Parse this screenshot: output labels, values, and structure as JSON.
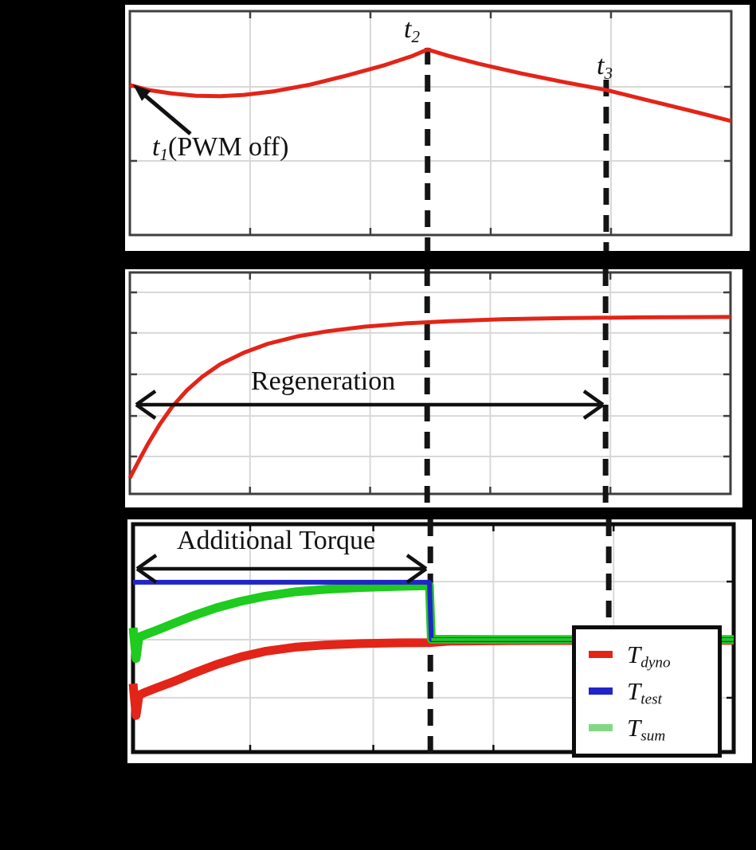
{
  "figure": {
    "background": "#000000",
    "panel_background": "#ffffff",
    "description": "Three stacked oscilloscope-style plots: speed trace with t1/t2/t3 markers, regeneration quantity trace, and torque traces with legend"
  },
  "colors": {
    "red": "#e32418",
    "green": "#1ecb1e",
    "green_light": "#84d884",
    "blue": "#2125c8",
    "frame": "#3f3f3f",
    "frame_dark": "#0d0d0d",
    "grid": "#d8d8d8",
    "dash": "#141414",
    "text": "#111111"
  },
  "chart_data": [
    {
      "id": "top-plot",
      "type": "line",
      "title": "",
      "xlabel": "",
      "ylabel": "",
      "axes_unlabeled": true,
      "grid": true,
      "x_gridlines": [
        0.2,
        0.4,
        0.6,
        0.8
      ],
      "y_gridlines": [
        0.331,
        0.662
      ],
      "event_x": [
        0.495,
        0.792
      ],
      "annotations": {
        "t1": {
          "base": "t",
          "sub": "1",
          "rest": "(PWM off)",
          "x": 0.0
        },
        "t2": {
          "base": "t",
          "sub": "2",
          "x": 0.495
        },
        "t3": {
          "base": "t",
          "sub": "3",
          "x": 0.792
        }
      },
      "series": [
        {
          "name": "speed-curve",
          "color_key": "red",
          "width": 5,
          "points": [
            [
              0,
              0.67
            ],
            [
              0.03,
              0.648
            ],
            [
              0.07,
              0.632
            ],
            [
              0.11,
              0.622
            ],
            [
              0.15,
              0.62
            ],
            [
              0.19,
              0.626
            ],
            [
              0.24,
              0.642
            ],
            [
              0.3,
              0.672
            ],
            [
              0.36,
              0.712
            ],
            [
              0.42,
              0.756
            ],
            [
              0.47,
              0.8
            ],
            [
              0.495,
              0.829
            ],
            [
              0.53,
              0.8
            ],
            [
              0.58,
              0.765
            ],
            [
              0.65,
              0.722
            ],
            [
              0.72,
              0.684
            ],
            [
              0.792,
              0.648
            ],
            [
              0.87,
              0.596
            ],
            [
              0.94,
              0.55
            ],
            [
              1,
              0.509
            ]
          ]
        }
      ]
    },
    {
      "id": "middle-plot",
      "type": "line",
      "title": "",
      "xlabel": "",
      "ylabel": "",
      "axes_unlabeled": true,
      "grid": true,
      "x_gridlines": [
        0.2,
        0.4,
        0.6,
        0.8
      ],
      "y_gridlines": [
        0.169,
        0.352,
        0.54,
        0.727,
        0.91
      ],
      "event_x": [
        0.495,
        0.792
      ],
      "annotations": {
        "regeneration": {
          "text": "Regeneration",
          "span_x": [
            0.0,
            0.79
          ]
        }
      },
      "series": [
        {
          "name": "regeneration-curve",
          "color_key": "red",
          "width": 5,
          "points": [
            [
              0,
              0.072
            ],
            [
              0.015,
              0.15
            ],
            [
              0.03,
              0.225
            ],
            [
              0.05,
              0.315
            ],
            [
              0.07,
              0.392
            ],
            [
              0.095,
              0.468
            ],
            [
              0.12,
              0.528
            ],
            [
              0.15,
              0.585
            ],
            [
              0.19,
              0.638
            ],
            [
              0.23,
              0.678
            ],
            [
              0.28,
              0.712
            ],
            [
              0.33,
              0.735
            ],
            [
              0.39,
              0.755
            ],
            [
              0.46,
              0.77
            ],
            [
              0.53,
              0.78
            ],
            [
              0.62,
              0.789
            ],
            [
              0.73,
              0.794
            ],
            [
              0.85,
              0.797
            ],
            [
              1,
              0.799
            ]
          ]
        }
      ]
    },
    {
      "id": "bottom-plot",
      "type": "line",
      "title": "",
      "xlabel": "",
      "ylabel": "",
      "axes_unlabeled": true,
      "grid": true,
      "x_gridlines": [
        0.195,
        0.4,
        0.6,
        0.8
      ],
      "y_gridlines": [
        0.238,
        0.493,
        0.748
      ],
      "event_x": [
        0.495,
        0.792
      ],
      "annotations": {
        "additional_torque": {
          "text": "Additional Torque",
          "span_x": [
            0.0,
            0.49
          ]
        }
      },
      "series": [
        {
          "name": "T_dyno",
          "color_key": "red",
          "width": 11,
          "points": [
            [
              0,
              0.3
            ],
            [
              0.005,
              0.16
            ],
            [
              0.01,
              0.25
            ],
            [
              0.02,
              0.262
            ],
            [
              0.04,
              0.282
            ],
            [
              0.07,
              0.312
            ],
            [
              0.1,
              0.345
            ],
            [
              0.14,
              0.385
            ],
            [
              0.18,
              0.418
            ],
            [
              0.22,
              0.442
            ],
            [
              0.27,
              0.46
            ],
            [
              0.32,
              0.47
            ],
            [
              0.38,
              0.476
            ],
            [
              0.44,
              0.479
            ],
            [
              0.495,
              0.48
            ],
            [
              0.53,
              0.487
            ],
            [
              0.65,
              0.489
            ],
            [
              1,
              0.49
            ]
          ]
        },
        {
          "name": "T_sum",
          "color_key": "green",
          "width": 11,
          "points": [
            [
              0,
              0.545
            ],
            [
              0.005,
              0.41
            ],
            [
              0.01,
              0.505
            ],
            [
              0.02,
              0.515
            ],
            [
              0.04,
              0.535
            ],
            [
              0.07,
              0.567
            ],
            [
              0.1,
              0.598
            ],
            [
              0.14,
              0.634
            ],
            [
              0.18,
              0.662
            ],
            [
              0.22,
              0.684
            ],
            [
              0.27,
              0.703
            ],
            [
              0.32,
              0.714
            ],
            [
              0.38,
              0.722
            ],
            [
              0.44,
              0.727
            ],
            [
              0.4935,
              0.73
            ],
            [
              0.4965,
              0.495
            ],
            [
              0.6,
              0.494
            ],
            [
              0.8,
              0.494
            ],
            [
              1,
              0.494
            ]
          ]
        },
        {
          "name": "T_test",
          "color_key": "blue",
          "width": 6,
          "points": [
            [
              0,
              0.745
            ],
            [
              0.4935,
              0.745
            ],
            [
              0.4965,
              0.493
            ],
            [
              1,
              0.493
            ]
          ]
        },
        {
          "name": "T_sum-flat-overlay",
          "color_key": "green",
          "width": 4,
          "points": [
            [
              0.4965,
              0.494
            ],
            [
              1,
              0.494
            ]
          ]
        }
      ],
      "legend": {
        "position": "lower right",
        "items": [
          {
            "base": "T",
            "sub": "dyno",
            "color_key": "red"
          },
          {
            "base": "T",
            "sub": "test",
            "color_key": "blue"
          },
          {
            "base": "T",
            "sub": "sum",
            "color_key": "green_light"
          }
        ]
      }
    }
  ]
}
